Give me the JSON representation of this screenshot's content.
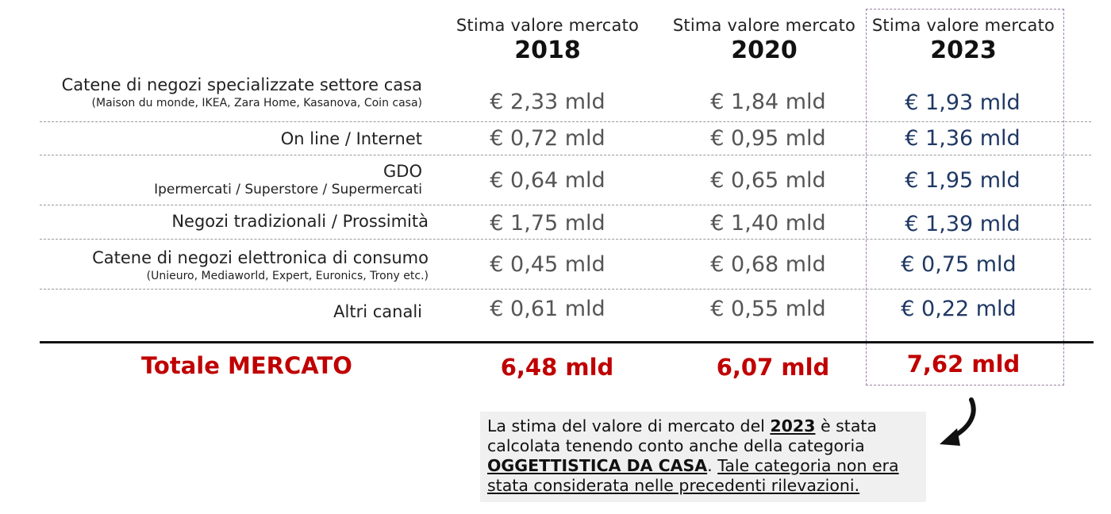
{
  "columns": [
    {
      "sub": "Stima valore mercato",
      "year": "2018"
    },
    {
      "sub": "Stima valore mercato",
      "year": "2020"
    },
    {
      "sub": "Stima valore mercato",
      "year": "2023"
    }
  ],
  "rows": [
    {
      "label": "Catene di negozi specializzate settore casa",
      "note": "(Maison du monde, IKEA, Zara Home, Kasanova, Coin casa)",
      "values": [
        "€ 2,33 mld",
        "€ 1,84 mld",
        "€ 1,93 mld"
      ]
    },
    {
      "label": "On line / Internet",
      "note": "",
      "values": [
        "€ 0,72 mld",
        "€ 0,95 mld",
        "€ 1,36 mld"
      ]
    },
    {
      "label": "GDO",
      "note": "Ipermercati / Superstore / Supermercati",
      "values": [
        "€ 0,64 mld",
        "€ 0,65 mld",
        "€ 1,95 mld"
      ]
    },
    {
      "label": "Negozi tradizionali / Prossimità",
      "note": "",
      "values": [
        "€ 1,75 mld",
        "€ 1,40 mld",
        "€ 1,39 mld"
      ]
    },
    {
      "label": "Catene di negozi elettronica di consumo",
      "note": "(Unieuro, Mediaworld, Expert, Euronics, Trony etc.)",
      "values": [
        "€ 0,45 mld",
        "€ 0,68 mld",
        "€ 0,75 mld"
      ]
    },
    {
      "label": "Altri canali",
      "note": "",
      "values": [
        "€ 0,61 mld",
        "€ 0,55 mld",
        "€ 0,22 mld"
      ]
    }
  ],
  "total": {
    "label": "Totale MERCATO",
    "values": [
      "6,48 mld",
      "6,07 mld",
      "7,62 mld"
    ]
  },
  "note": {
    "part1": "La stima del valore di mercato del ",
    "year": "2023",
    "part2": " è stata calcolata tenendo conto anche della categoria ",
    "category": "OGGETTISTICA DA CASA",
    "part3": ". ",
    "underlined": "Tale categoria non era stata considerata nelle precedenti rilevazioni."
  },
  "colors": {
    "total": "#c00000",
    "highlight_values": "#1f3864",
    "values": "#555555",
    "highlight_border": "#9b7fa6"
  },
  "icons": {
    "arrow": "curved-arrow-icon"
  }
}
